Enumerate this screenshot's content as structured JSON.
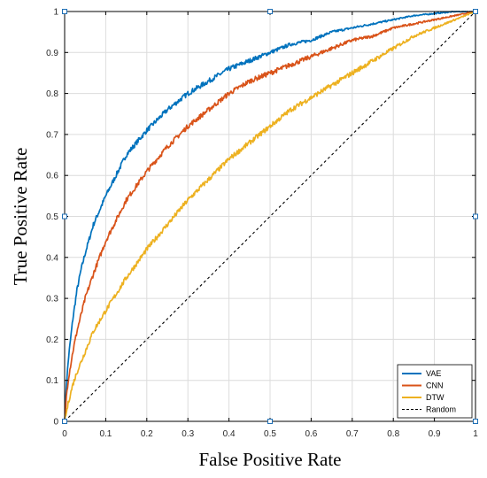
{
  "chart_data": {
    "type": "line",
    "title": "",
    "xlabel": "False Positive Rate",
    "ylabel": "True Positive Rate",
    "xlim": [
      0,
      1
    ],
    "ylim": [
      0,
      1
    ],
    "xticks": [
      "0",
      "0.1",
      "0.2",
      "0.3",
      "0.4",
      "0.5",
      "0.6",
      "0.7",
      "0.8",
      "0.9",
      "1"
    ],
    "yticks": [
      "0",
      "0.1",
      "0.2",
      "0.3",
      "0.4",
      "0.5",
      "0.6",
      "0.7",
      "0.8",
      "0.9",
      "1"
    ],
    "grid": true,
    "legend_position": "bottom-right",
    "series": [
      {
        "name": "VAE",
        "color": "#0072BD",
        "style": "solid",
        "x": [
          0,
          0.005,
          0.01,
          0.02,
          0.03,
          0.04,
          0.05,
          0.07,
          0.1,
          0.13,
          0.15,
          0.2,
          0.25,
          0.3,
          0.35,
          0.4,
          0.45,
          0.5,
          0.55,
          0.6,
          0.65,
          0.7,
          0.75,
          0.8,
          0.85,
          0.9,
          0.95,
          1
        ],
        "y": [
          0,
          0.1,
          0.16,
          0.25,
          0.32,
          0.37,
          0.41,
          0.48,
          0.55,
          0.61,
          0.65,
          0.71,
          0.76,
          0.8,
          0.83,
          0.86,
          0.88,
          0.9,
          0.92,
          0.93,
          0.95,
          0.96,
          0.97,
          0.98,
          0.99,
          0.995,
          1,
          1
        ]
      },
      {
        "name": "CNN",
        "color": "#D95319",
        "style": "solid",
        "x": [
          0,
          0.005,
          0.01,
          0.02,
          0.03,
          0.05,
          0.07,
          0.1,
          0.13,
          0.15,
          0.2,
          0.25,
          0.3,
          0.35,
          0.4,
          0.45,
          0.5,
          0.55,
          0.6,
          0.65,
          0.7,
          0.75,
          0.8,
          0.85,
          0.9,
          0.95,
          1
        ],
        "y": [
          0,
          0.07,
          0.11,
          0.17,
          0.22,
          0.3,
          0.36,
          0.44,
          0.5,
          0.54,
          0.61,
          0.67,
          0.72,
          0.76,
          0.8,
          0.83,
          0.85,
          0.87,
          0.89,
          0.91,
          0.93,
          0.94,
          0.96,
          0.97,
          0.98,
          0.99,
          1
        ]
      },
      {
        "name": "DTW",
        "color": "#EDB120",
        "style": "solid",
        "x": [
          0,
          0.01,
          0.02,
          0.03,
          0.05,
          0.07,
          0.1,
          0.15,
          0.2,
          0.25,
          0.3,
          0.35,
          0.4,
          0.45,
          0.5,
          0.55,
          0.6,
          0.65,
          0.7,
          0.75,
          0.8,
          0.85,
          0.9,
          0.95,
          1
        ],
        "y": [
          0,
          0.05,
          0.09,
          0.12,
          0.17,
          0.22,
          0.27,
          0.35,
          0.42,
          0.48,
          0.54,
          0.59,
          0.64,
          0.68,
          0.72,
          0.76,
          0.79,
          0.82,
          0.85,
          0.88,
          0.91,
          0.94,
          0.96,
          0.98,
          1
        ]
      },
      {
        "name": "Random",
        "color": "#000000",
        "style": "dashed",
        "x": [
          0,
          1
        ],
        "y": [
          0,
          1
        ]
      }
    ]
  }
}
